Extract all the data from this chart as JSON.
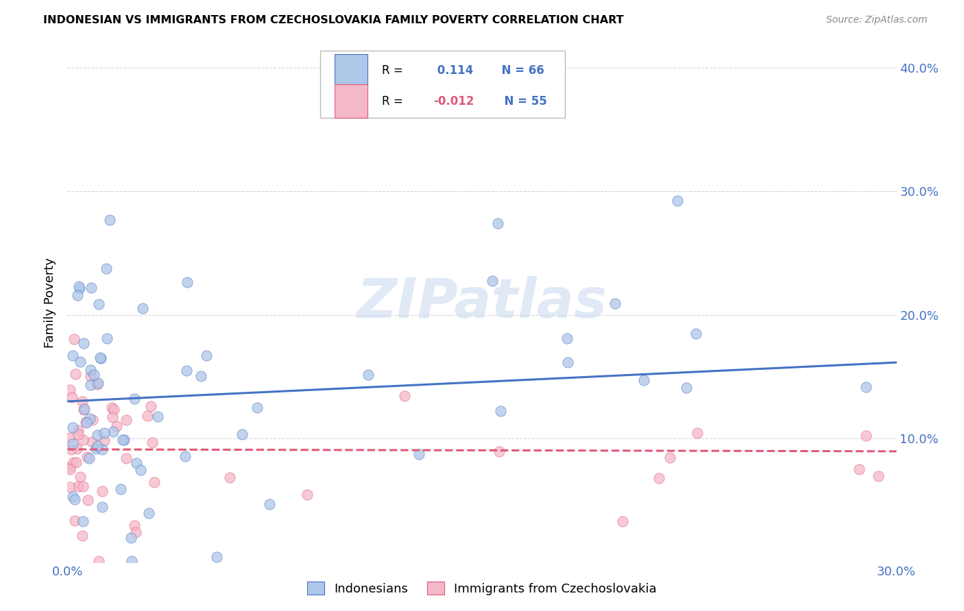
{
  "title": "INDONESIAN VS IMMIGRANTS FROM CZECHOSLOVAKIA FAMILY POVERTY CORRELATION CHART",
  "source": "Source: ZipAtlas.com",
  "ylabel": "Family Poverty",
  "xlim": [
    0.0,
    0.3
  ],
  "ylim": [
    0.0,
    0.42
  ],
  "r_indonesian": 0.114,
  "n_indonesian": 66,
  "r_czech": -0.012,
  "n_czech": 55,
  "color_indonesian": "#aec6e8",
  "color_czech": "#f4b8c8",
  "line_color_indonesian": "#4472c4",
  "line_color_czech": "#e05878",
  "background_color": "#ffffff",
  "grid_color": "#cccccc",
  "legend_r1_black": "R = ",
  "legend_r1_blue": " 0.114",
  "legend_r1_n": " N = 66",
  "legend_r2_black": "R = ",
  "legend_r2_pink": "-0.012",
  "legend_r2_n": " N = 55"
}
